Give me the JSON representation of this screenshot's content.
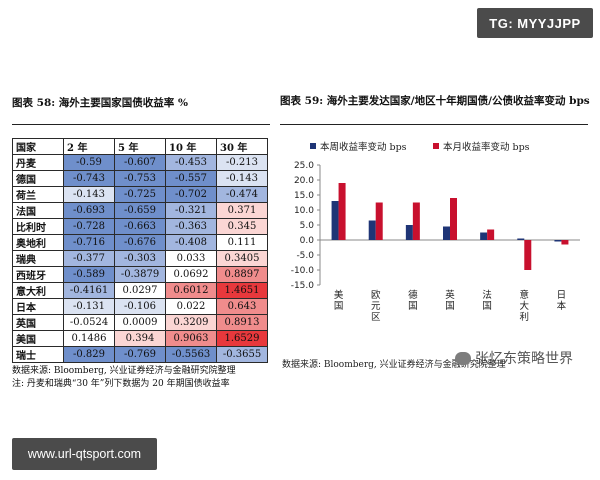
{
  "badges": {
    "top": "TG: MYYJJPP",
    "bottom": "www.url-qtsport.com"
  },
  "left": {
    "title": "图表 58: 海外主要国家国债收益率 %",
    "headers": [
      "国家",
      "2 年",
      "5 年",
      "10 年",
      "30 年"
    ],
    "rows": [
      {
        "country": "丹麦",
        "values": [
          "-0.59",
          "-0.607",
          "-0.453",
          "-0.213"
        ]
      },
      {
        "country": "德国",
        "values": [
          "-0.743",
          "-0.753",
          "-0.557",
          "-0.143"
        ]
      },
      {
        "country": "荷兰",
        "values": [
          "-0.143",
          "-0.725",
          "-0.702",
          "-0.474"
        ]
      },
      {
        "country": "法国",
        "values": [
          "-0.693",
          "-0.659",
          "-0.321",
          "0.371"
        ]
      },
      {
        "country": "比利时",
        "values": [
          "-0.728",
          "-0.663",
          "-0.363",
          "0.345"
        ]
      },
      {
        "country": "奥地利",
        "values": [
          "-0.716",
          "-0.676",
          "-0.408",
          "0.111"
        ]
      },
      {
        "country": "瑞典",
        "values": [
          "-0.377",
          "-0.303",
          "0.033",
          "0.3405"
        ]
      },
      {
        "country": "西班牙",
        "values": [
          "-0.589",
          "-0.3879",
          "0.0692",
          "0.8897"
        ]
      },
      {
        "country": "意大利",
        "values": [
          "-0.4161",
          "0.0297",
          "0.6012",
          "1.4651"
        ]
      },
      {
        "country": "日本",
        "values": [
          "-0.131",
          "-0.106",
          "0.022",
          "0.643"
        ]
      },
      {
        "country": "英国",
        "values": [
          "-0.0524",
          "0.0009",
          "0.3209",
          "0.8913"
        ]
      },
      {
        "country": "美国",
        "values": [
          "0.1486",
          "0.394",
          "0.9063",
          "1.6529"
        ]
      },
      {
        "country": "瑞士",
        "values": [
          "-0.829",
          "-0.769",
          "-0.5563",
          "-0.3655"
        ]
      }
    ],
    "notes": [
      "数据来源: Bloomberg, 兴业证券经济与金融研究院整理",
      "注: 丹麦和瑞典“30 年”列下数据为 20 年期国债收益率"
    ]
  },
  "right": {
    "title": "图表 59: 海外主要发达国家/地区十年期国债/公债收益率变动 bps",
    "source": "数据来源: Bloomberg, 兴业证券经济与金融研究院整理"
  },
  "watermark": "张忆东策略世界",
  "colors": {
    "blue_strong": "#6f8fcb",
    "blue_mid": "#a2b6df",
    "blue_light": "#dbe3f2",
    "red_strong": "#e8383c",
    "red_mid": "#f08c8c",
    "red_light": "#fbd6d4",
    "series_week": "#1f3576",
    "series_month": "#c8102e"
  },
  "chart_data": {
    "type": "bar",
    "categories": [
      "美国",
      "欧元区",
      "德国",
      "英国",
      "法国",
      "意大利",
      "日本"
    ],
    "series": [
      {
        "name": "本周收益率变动 bps",
        "values": [
          13,
          6.5,
          5,
          4.5,
          2.5,
          0.5,
          -0.5
        ]
      },
      {
        "name": "本月收益率变动 bps",
        "values": [
          19,
          12.5,
          12.5,
          14,
          3.5,
          -10,
          -1.5
        ]
      }
    ],
    "ylim": [
      -15,
      25
    ],
    "yticks": [
      "25.0",
      "20.0",
      "15.0",
      "10.0",
      "5.0",
      "0.0",
      "-5.0",
      "-10.0",
      "-15.0"
    ],
    "legend": "top"
  }
}
